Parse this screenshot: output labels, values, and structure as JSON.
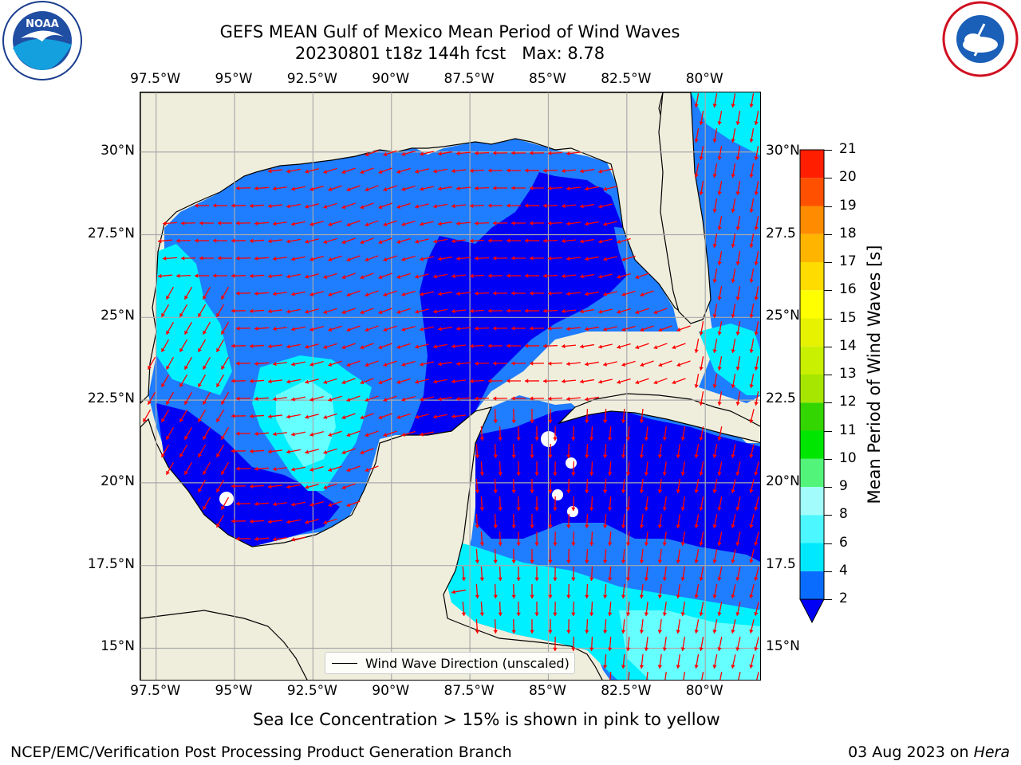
{
  "title": {
    "line1": "GEFS MEAN Gulf of Mexico Mean Period of Wind Waves",
    "line2": "20230801 t18z 144h fcst   Max: 8.78"
  },
  "logos": {
    "noaa": {
      "text": "NOAA",
      "icon": "noaa-logo-icon"
    },
    "nws": {
      "icon": "nws-logo-icon"
    }
  },
  "axes": {
    "lon_ticks": [
      "97.5°W",
      "95°W",
      "92.5°W",
      "90°W",
      "87.5°W",
      "85°W",
      "82.5°W",
      "80°W"
    ],
    "lat_ticks_left": [
      "30°N",
      "27.5°N",
      "25°N",
      "22.5°N",
      "20°N",
      "17.5°N",
      "15°N"
    ],
    "lat_ticks_right": [
      "30°N",
      "27.5",
      "25°N",
      "22.5",
      "20°N",
      "17.5",
      "15°N"
    ],
    "lon_range": [
      -98,
      -78.2
    ],
    "lat_range": [
      14.0,
      31.8
    ]
  },
  "legend": {
    "label": "Wind Wave Direction (unscaled)"
  },
  "colorbar": {
    "label": "Mean Period of Wind Waves [s]",
    "ticks": [
      "2",
      "4",
      "6",
      "8",
      "9",
      "10",
      "11",
      "12",
      "13",
      "14",
      "15",
      "16",
      "17",
      "18",
      "19",
      "20",
      "21"
    ],
    "levels": [
      2,
      4,
      6,
      8,
      9,
      10,
      11,
      12,
      13,
      14,
      15,
      16,
      17,
      18,
      19,
      20,
      21
    ],
    "colors": [
      "#0a6cff",
      "#00e8ff",
      "#4cf7ff",
      "#a2fcfc",
      "#52f57a",
      "#00e600",
      "#33d600",
      "#a6e600",
      "#c8f000",
      "#e6f200",
      "#ffff00",
      "#ffdc00",
      "#ffb400",
      "#ff8c00",
      "#ff5000",
      "#ff1e00"
    ],
    "extend_color": "#0000f5"
  },
  "colors": {
    "land": "#efeedd",
    "deep": "#0000f5",
    "mid": "#1f7dff",
    "light": "#00f0ff",
    "pale": "#66ffff",
    "arrow": "#ff0000"
  },
  "footer": {
    "subtitle": "Sea Ice Concentration > 15% is shown in pink to yellow",
    "left": "NCEP/EMC/Verification Post Processing Product Generation Branch",
    "right_date": "03 Aug 2023 on ",
    "right_host": "Hera"
  }
}
